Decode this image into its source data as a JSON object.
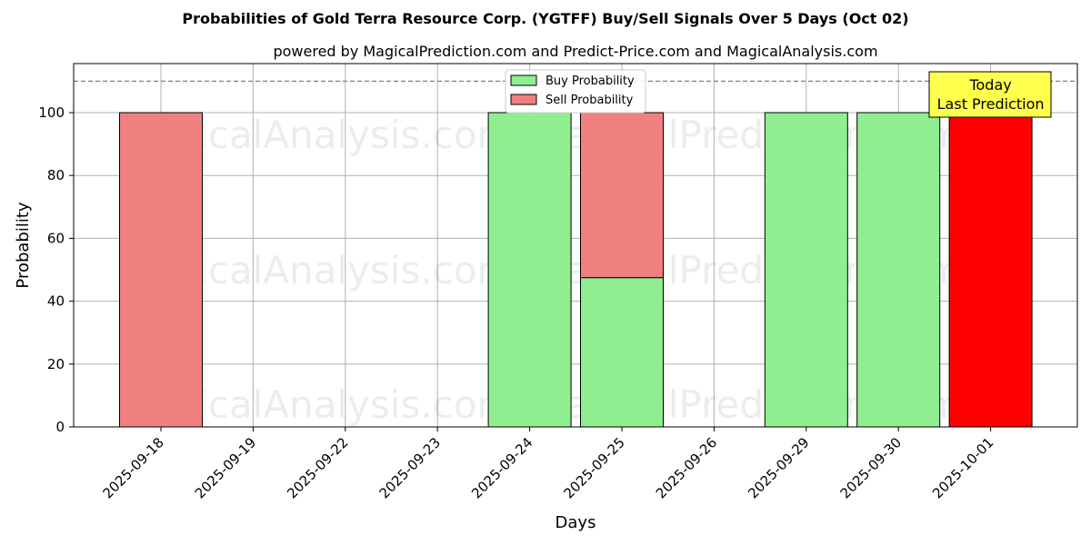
{
  "chart_data": {
    "type": "bar",
    "title": "Probabilities of Gold Terra Resource Corp. (YGTFF) Buy/Sell Signals Over 5 Days (Oct 02)",
    "subtitle": "powered by MagicalPrediction.com and Predict-Price.com and MagicalAnalysis.com",
    "xlabel": "Days",
    "ylabel": "Probability",
    "ylim": [
      0,
      115
    ],
    "yticks": [
      0,
      20,
      40,
      60,
      80,
      100
    ],
    "grid": true,
    "legend_position": "top-center",
    "reference_line": {
      "value": 110,
      "style": "dashed"
    },
    "categories": [
      "2025-09-18",
      "2025-09-19",
      "2025-09-22",
      "2025-09-23",
      "2025-09-24",
      "2025-09-25",
      "2025-09-26",
      "2025-09-29",
      "2025-09-30",
      "2025-10-01"
    ],
    "series": [
      {
        "name": "Buy Probability",
        "color": "#90ee90",
        "values": [
          0,
          0,
          0,
          0,
          100,
          47.5,
          0,
          100,
          100,
          0
        ]
      },
      {
        "name": "Sell Probability",
        "color": "#f08080",
        "values": [
          100,
          0,
          0,
          0,
          0,
          52.5,
          0,
          0,
          0,
          100
        ]
      }
    ],
    "highlight": {
      "category": "2025-10-01",
      "color": "#ff0000"
    },
    "annotation": {
      "lines": [
        "Today",
        "Last Prediction"
      ],
      "category": "2025-10-01",
      "background": "#ffff4d"
    },
    "watermarks": [
      "MagicalAnalysis.com",
      "MagicalPrediction.com"
    ]
  }
}
